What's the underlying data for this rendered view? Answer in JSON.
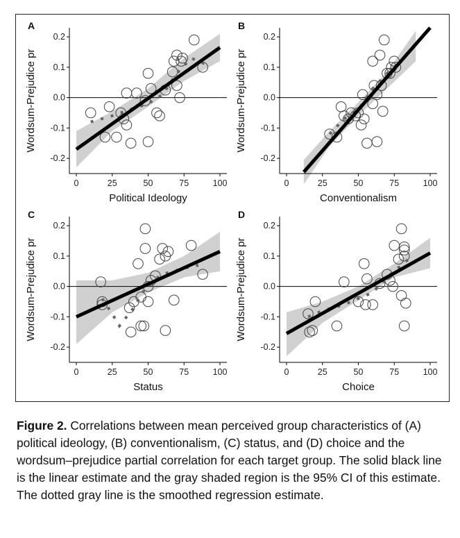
{
  "caption": {
    "lead": "Figure 2.",
    "text": "Correlations between mean perceived group characteristics of (A) political ideology, (B) conventionalism, (C) status, and (D) choice and the wordsum–prejudice partial correlation for each target group. The solid black line is the linear estimate and the gray shaded region is the 95% CI of this estimate. The dotted gray line is the smoothed regression estimate."
  },
  "colors": {
    "points": "#444444",
    "fit_line": "#000000",
    "ci_band": "#d0d0d0",
    "smooth": "#666666"
  },
  "chart_data": [
    {
      "type": "scatter",
      "panel": "A",
      "xlabel": "Political Ideology",
      "ylabel": "Wordsum-Prejudice pr",
      "xlim": [
        0,
        100
      ],
      "ylim": [
        -0.25,
        0.23
      ],
      "x_ticks": [
        0,
        25,
        50,
        75,
        100
      ],
      "y_ticks": [
        -0.2,
        -0.1,
        0.0,
        0.1,
        0.2
      ],
      "x_tick_labels": [
        "0",
        "25",
        "50",
        "75",
        "100"
      ],
      "y_tick_labels": [
        "-0.2",
        "-0.1",
        "0.0",
        "0.1",
        "0.2"
      ],
      "points": [
        [
          10,
          -0.05
        ],
        [
          20,
          -0.13
        ],
        [
          23,
          -0.03
        ],
        [
          28,
          -0.13
        ],
        [
          31,
          -0.05
        ],
        [
          33,
          -0.07
        ],
        [
          35,
          -0.09
        ],
        [
          35,
          0.015
        ],
        [
          38,
          -0.15
        ],
        [
          42,
          0.015
        ],
        [
          48,
          -0.01
        ],
        [
          50,
          0.08
        ],
        [
          50,
          -0.145
        ],
        [
          52,
          0.03
        ],
        [
          56,
          -0.05
        ],
        [
          58,
          -0.06
        ],
        [
          62,
          0.025
        ],
        [
          67,
          0.085
        ],
        [
          68,
          0.12
        ],
        [
          70,
          0.14
        ],
        [
          70,
          0.04
        ],
        [
          72,
          0.0
        ],
        [
          73,
          0.12
        ],
        [
          74,
          0.13
        ],
        [
          82,
          0.19
        ],
        [
          88,
          0.1
        ]
      ],
      "fit": [
        [
          0,
          -0.17
        ],
        [
          100,
          0.165
        ]
      ],
      "ci_low": [
        [
          0,
          -0.23
        ],
        [
          25,
          -0.11
        ],
        [
          50,
          -0.03
        ],
        [
          75,
          0.055
        ],
        [
          100,
          0.12
        ]
      ],
      "ci_high": [
        [
          0,
          -0.11
        ],
        [
          25,
          -0.045
        ],
        [
          50,
          0.03
        ],
        [
          75,
          0.13
        ],
        [
          100,
          0.21
        ]
      ],
      "smooth": [
        [
          10,
          -0.08
        ],
        [
          25,
          -0.06
        ],
        [
          40,
          -0.035
        ],
        [
          50,
          -0.02
        ],
        [
          60,
          0.01
        ],
        [
          70,
          0.08
        ],
        [
          80,
          0.13
        ],
        [
          90,
          0.11
        ]
      ]
    },
    {
      "type": "scatter",
      "panel": "B",
      "xlabel": "Conventionalism",
      "ylabel": "Wordsum-Prejudice pr",
      "xlim": [
        0,
        100
      ],
      "ylim": [
        -0.25,
        0.23
      ],
      "x_ticks": [
        0,
        25,
        50,
        75,
        100
      ],
      "y_ticks": [
        -0.2,
        -0.1,
        0.0,
        0.1,
        0.2
      ],
      "x_tick_labels": [
        "0",
        "25",
        "50",
        "75",
        "100"
      ],
      "y_tick_labels": [
        "-0.2",
        "-0.1",
        "0.0",
        "0.1",
        "0.2"
      ],
      "points": [
        [
          30,
          -0.12
        ],
        [
          35,
          -0.13
        ],
        [
          38,
          -0.03
        ],
        [
          40,
          -0.06
        ],
        [
          43,
          -0.07
        ],
        [
          45,
          -0.05
        ],
        [
          48,
          -0.06
        ],
        [
          50,
          -0.05
        ],
        [
          52,
          -0.09
        ],
        [
          53,
          0.01
        ],
        [
          54,
          -0.07
        ],
        [
          56,
          -0.15
        ],
        [
          60,
          0.12
        ],
        [
          60,
          -0.02
        ],
        [
          61,
          0.04
        ],
        [
          63,
          -0.145
        ],
        [
          63,
          0.01
        ],
        [
          65,
          0.14
        ],
        [
          66,
          0.04
        ],
        [
          67,
          -0.045
        ],
        [
          68,
          0.19
        ],
        [
          70,
          0.08
        ],
        [
          72,
          0.08
        ],
        [
          73,
          0.1
        ],
        [
          75,
          0.12
        ],
        [
          76,
          0.1
        ]
      ],
      "fit": [
        [
          12,
          -0.245
        ],
        [
          100,
          0.23
        ]
      ],
      "ci_low": [
        [
          12,
          -0.285
        ],
        [
          30,
          -0.16
        ],
        [
          50,
          -0.06
        ],
        [
          70,
          0.03
        ],
        [
          90,
          0.12
        ]
      ],
      "ci_high": [
        [
          12,
          -0.205
        ],
        [
          30,
          -0.11
        ],
        [
          50,
          -0.015
        ],
        [
          70,
          0.085
        ],
        [
          90,
          0.22
        ]
      ],
      "smooth": [
        [
          30,
          -0.12
        ],
        [
          40,
          -0.07
        ],
        [
          50,
          -0.04
        ],
        [
          60,
          0.03
        ],
        [
          70,
          0.08
        ],
        [
          80,
          0.12
        ]
      ]
    },
    {
      "type": "scatter",
      "panel": "C",
      "xlabel": "Status",
      "ylabel": "Wordsum-Prejudice pr",
      "xlim": [
        0,
        100
      ],
      "ylim": [
        -0.25,
        0.23
      ],
      "x_ticks": [
        0,
        25,
        50,
        75,
        100
      ],
      "y_ticks": [
        -0.2,
        -0.1,
        0.0,
        0.1,
        0.2
      ],
      "x_tick_labels": [
        "0",
        "25",
        "50",
        "75",
        "100"
      ],
      "y_tick_labels": [
        "-0.2",
        "-0.1",
        "0.0",
        "0.1",
        "0.2"
      ],
      "points": [
        [
          17,
          0.015
        ],
        [
          18,
          -0.06
        ],
        [
          18,
          -0.05
        ],
        [
          37,
          -0.07
        ],
        [
          38,
          -0.15
        ],
        [
          40,
          -0.05
        ],
        [
          43,
          0.075
        ],
        [
          45,
          -0.13
        ],
        [
          45,
          -0.035
        ],
        [
          47,
          -0.13
        ],
        [
          48,
          0.125
        ],
        [
          48,
          0.19
        ],
        [
          50,
          0.0
        ],
        [
          50,
          -0.05
        ],
        [
          52,
          0.02
        ],
        [
          55,
          0.035
        ],
        [
          58,
          0.09
        ],
        [
          60,
          0.125
        ],
        [
          62,
          0.1
        ],
        [
          62,
          -0.145
        ],
        [
          64,
          0.115
        ],
        [
          68,
          -0.045
        ],
        [
          80,
          0.135
        ],
        [
          88,
          0.04
        ]
      ],
      "fit": [
        [
          0,
          -0.1
        ],
        [
          100,
          0.115
        ]
      ],
      "ci_low": [
        [
          0,
          -0.19
        ],
        [
          25,
          -0.085
        ],
        [
          50,
          -0.02
        ],
        [
          75,
          0.03
        ],
        [
          100,
          0.05
        ]
      ],
      "ci_high": [
        [
          0,
          0.02
        ],
        [
          25,
          0.02
        ],
        [
          50,
          0.045
        ],
        [
          75,
          0.1
        ],
        [
          100,
          0.18
        ]
      ],
      "smooth": [
        [
          18,
          -0.04
        ],
        [
          25,
          -0.09
        ],
        [
          30,
          -0.13
        ],
        [
          40,
          -0.07
        ],
        [
          50,
          0.01
        ],
        [
          60,
          0.04
        ],
        [
          75,
          0.06
        ],
        [
          85,
          0.07
        ]
      ]
    },
    {
      "type": "scatter",
      "panel": "D",
      "xlabel": "Choice",
      "ylabel": "Wordsum-Prejudice pr",
      "xlim": [
        0,
        100
      ],
      "ylim": [
        -0.25,
        0.23
      ],
      "x_ticks": [
        0,
        25,
        50,
        75,
        100
      ],
      "y_ticks": [
        -0.2,
        -0.1,
        0.0,
        0.1,
        0.2
      ],
      "x_tick_labels": [
        "0",
        "25",
        "50",
        "75",
        "100"
      ],
      "y_tick_labels": [
        "-0.2",
        "-0.1",
        "0.0",
        "0.1",
        "0.2"
      ],
      "points": [
        [
          15,
          -0.09
        ],
        [
          16,
          -0.15
        ],
        [
          18,
          -0.145
        ],
        [
          20,
          -0.05
        ],
        [
          35,
          -0.13
        ],
        [
          40,
          0.015
        ],
        [
          50,
          -0.05
        ],
        [
          54,
          0.075
        ],
        [
          55,
          -0.06
        ],
        [
          56,
          0.025
        ],
        [
          60,
          -0.06
        ],
        [
          65,
          0.01
        ],
        [
          70,
          0.04
        ],
        [
          72,
          0.02
        ],
        [
          74,
          0.0
        ],
        [
          75,
          0.135
        ],
        [
          78,
          0.09
        ],
        [
          80,
          0.19
        ],
        [
          80,
          -0.03
        ],
        [
          82,
          0.12
        ],
        [
          82,
          0.13
        ],
        [
          82,
          0.1
        ],
        [
          83,
          -0.055
        ],
        [
          82,
          -0.13
        ]
      ],
      "fit": [
        [
          0,
          -0.155
        ],
        [
          100,
          0.11
        ]
      ],
      "ci_low": [
        [
          0,
          -0.23
        ],
        [
          25,
          -0.12
        ],
        [
          50,
          -0.045
        ],
        [
          75,
          0.03
        ],
        [
          100,
          0.06
        ]
      ],
      "ci_high": [
        [
          0,
          -0.085
        ],
        [
          25,
          -0.05
        ],
        [
          50,
          0.0
        ],
        [
          75,
          0.075
        ],
        [
          100,
          0.16
        ]
      ],
      "smooth": [
        [
          15,
          -0.1
        ],
        [
          25,
          -0.08
        ],
        [
          40,
          -0.06
        ],
        [
          50,
          -0.04
        ],
        [
          60,
          -0.02
        ],
        [
          70,
          0.03
        ],
        [
          80,
          0.07
        ],
        [
          85,
          0.09
        ]
      ]
    }
  ]
}
